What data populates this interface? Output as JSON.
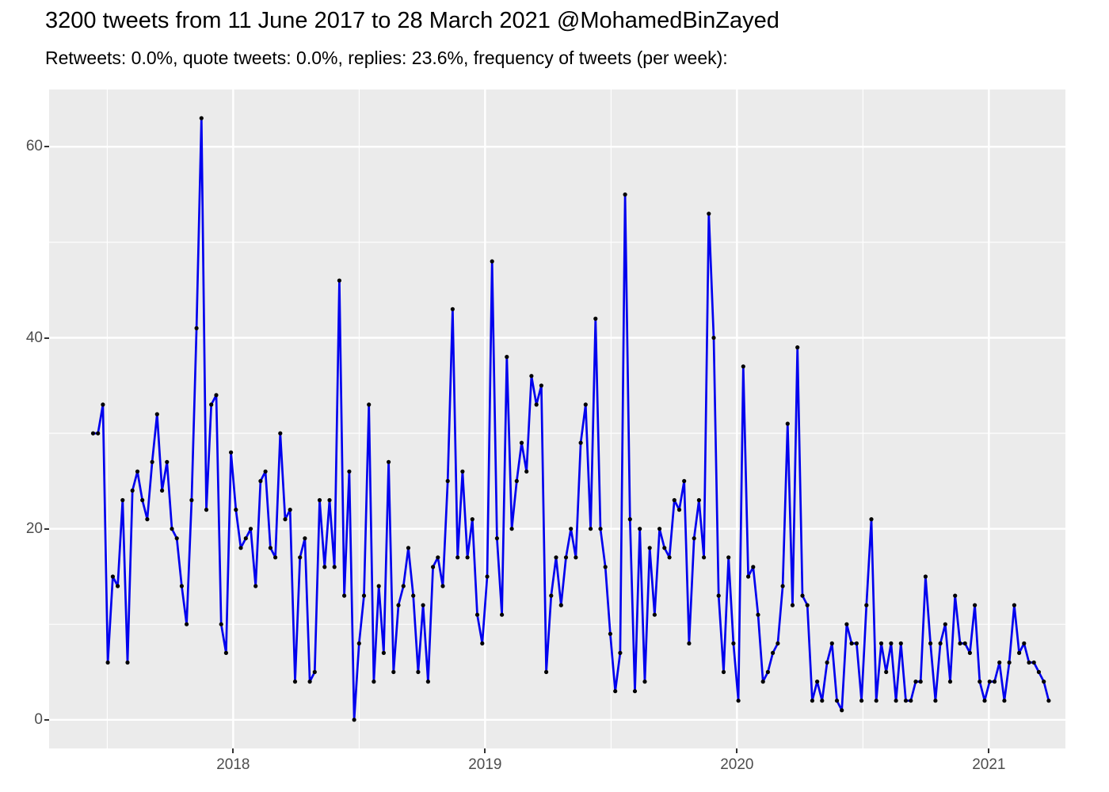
{
  "header": {
    "title": "3200 tweets from 11 June 2017 to 28 March 2021 @MohamedBinZayed",
    "subtitle": "Retweets: 0.0%, quote tweets: 0.0%, replies: 23.6%, frequency of tweets (per week):"
  },
  "chart_data": {
    "type": "line",
    "title": "3200 tweets from 11 June 2017 to 28 March 2021 @MohamedBinZayed",
    "subtitle": "Retweets: 0.0%, quote tweets: 0.0%, replies: 23.6%, frequency of tweets (per week):",
    "series_name": "frequency of tweets (per week)",
    "x_start_date": "2017-06-11",
    "x_end_date": "2021-03-28",
    "x_data_range_decimal": [
      2017.4438,
      2021.2375
    ],
    "x_axis_domain": [
      2017.2693,
      2021.3039
    ],
    "ylim": [
      -3,
      66
    ],
    "y_major_ticks": [
      0,
      20,
      40,
      60
    ],
    "y_minor_ticks": [
      10,
      30,
      50
    ],
    "x_major_ticks_decimal": [
      2018,
      2019,
      2020,
      2021
    ],
    "x_tick_labels": [
      "2018",
      "2019",
      "2020",
      "2021"
    ],
    "x_minor_ticks_decimal": [
      2017.5,
      2018.5,
      2019.5,
      2020.5
    ],
    "grid": "white major and minor gridlines on gray panel",
    "legend": "none",
    "xlabel": "",
    "ylabel": "",
    "colors": {
      "line": "#0000EE",
      "point": "#000000",
      "panel_bg": "#EBEBEB",
      "major_grid": "#FFFFFF",
      "minor_grid": "#FFFFFF",
      "tick_label": "#4D4D4D",
      "tick_mark": "#333333",
      "title_text": "#000000"
    },
    "values": [
      30,
      30,
      33,
      6,
      15,
      14,
      23,
      6,
      24,
      26,
      23,
      21,
      27,
      32,
      24,
      27,
      20,
      19,
      14,
      10,
      23,
      41,
      63,
      22,
      33,
      34,
      10,
      7,
      28,
      22,
      18,
      19,
      20,
      14,
      25,
      26,
      18,
      17,
      30,
      21,
      22,
      4,
      17,
      19,
      4,
      5,
      23,
      16,
      23,
      16,
      46,
      13,
      26,
      0,
      8,
      13,
      33,
      4,
      14,
      7,
      27,
      5,
      12,
      14,
      18,
      13,
      5,
      12,
      4,
      16,
      17,
      14,
      25,
      43,
      17,
      26,
      17,
      21,
      11,
      8,
      15,
      48,
      19,
      11,
      38,
      20,
      25,
      29,
      26,
      36,
      33,
      35,
      5,
      13,
      17,
      12,
      17,
      20,
      17,
      29,
      33,
      20,
      42,
      20,
      16,
      9,
      3,
      7,
      55,
      21,
      3,
      20,
      4,
      18,
      11,
      20,
      18,
      17,
      23,
      22,
      25,
      8,
      19,
      23,
      17,
      53,
      40,
      13,
      5,
      17,
      8,
      2,
      37,
      15,
      16,
      11,
      4,
      5,
      7,
      8,
      14,
      31,
      12,
      39,
      13,
      12,
      2,
      4,
      2,
      6,
      8,
      2,
      1,
      10,
      8,
      8,
      2,
      12,
      21,
      2,
      8,
      5,
      8,
      2,
      8,
      2,
      2,
      4,
      4,
      15,
      8,
      2,
      8,
      10,
      4,
      13,
      8,
      8,
      7,
      12,
      4,
      2,
      4,
      4,
      6,
      2,
      6,
      12,
      7,
      8,
      6,
      6,
      5,
      4,
      2
    ]
  }
}
